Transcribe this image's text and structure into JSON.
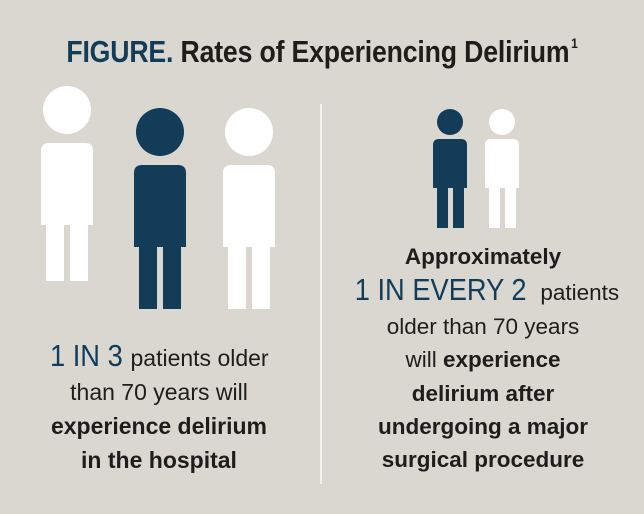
{
  "title": {
    "prefix": "FIGURE.",
    "text": "Rates of Experiencing Delirium",
    "footnote": "1"
  },
  "colors": {
    "background": "#d9d7d0",
    "navy": "#123c58",
    "white": "#ffffff",
    "text": "#1d1d1b"
  },
  "left": {
    "figures": [
      "white",
      "navy",
      "white"
    ],
    "highlight": "1 IN 3",
    "text1": "patients older",
    "text2": "than 70 years will",
    "bold1": "experience delirium",
    "bold2": "in the hospital"
  },
  "right": {
    "figures": [
      "navy",
      "white"
    ],
    "bold0": "Approximately",
    "highlight": "1 IN EVERY 2",
    "text1": "patients",
    "text2": "older than 70 years",
    "text3": "will",
    "bold1": "experience",
    "bold2": "delirium after",
    "bold3": "undergoing a major",
    "bold4": "surgical procedure"
  }
}
